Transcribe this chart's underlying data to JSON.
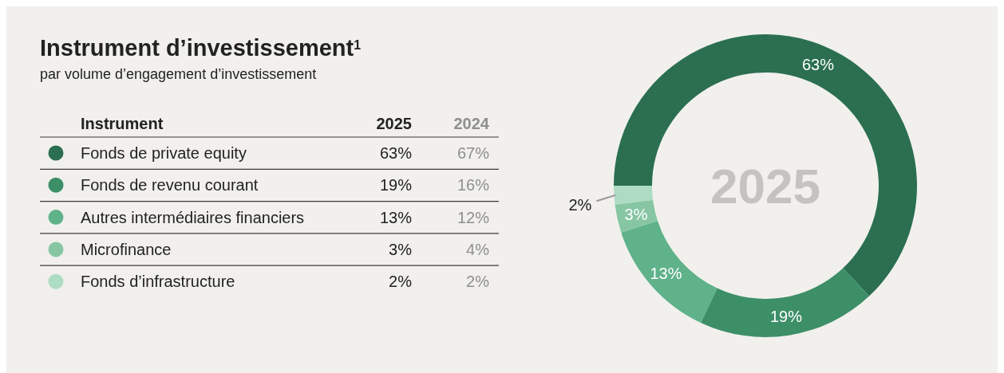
{
  "chart_data": [
    {
      "type": "donut",
      "title": "Instrument d’investissement$^{1}$",
      "subtitle": "par volume d’engagement d’investissement",
      "legend_title": "Instrument",
      "legend": "left",
      "categories": [
        "Fonds de private equity",
        "Fonds de revenu courant",
        "Autres intermédiaires financiers",
        "Microfinance",
        "Fonds d’infrastructure"
      ],
      "colors": [
        "#2b6f50",
        "#3d8f68",
        "#5fb28a",
        "#86c6a3",
        "#aedcc3"
      ],
      "series": [
        {
          "name": "2025",
          "values": [
            63,
            19,
            13,
            3,
            2
          ],
          "value_labels": [
            "63%",
            "19%",
            "13%",
            "3%",
            "2%"
          ]
        }
      ]
    },
    {
      "type": "other",
      "title": "2024",
      "annotations": [
        "67%",
        "16%",
        "12%",
        "4%",
        "2%"
      ]
    }
  ]
}
